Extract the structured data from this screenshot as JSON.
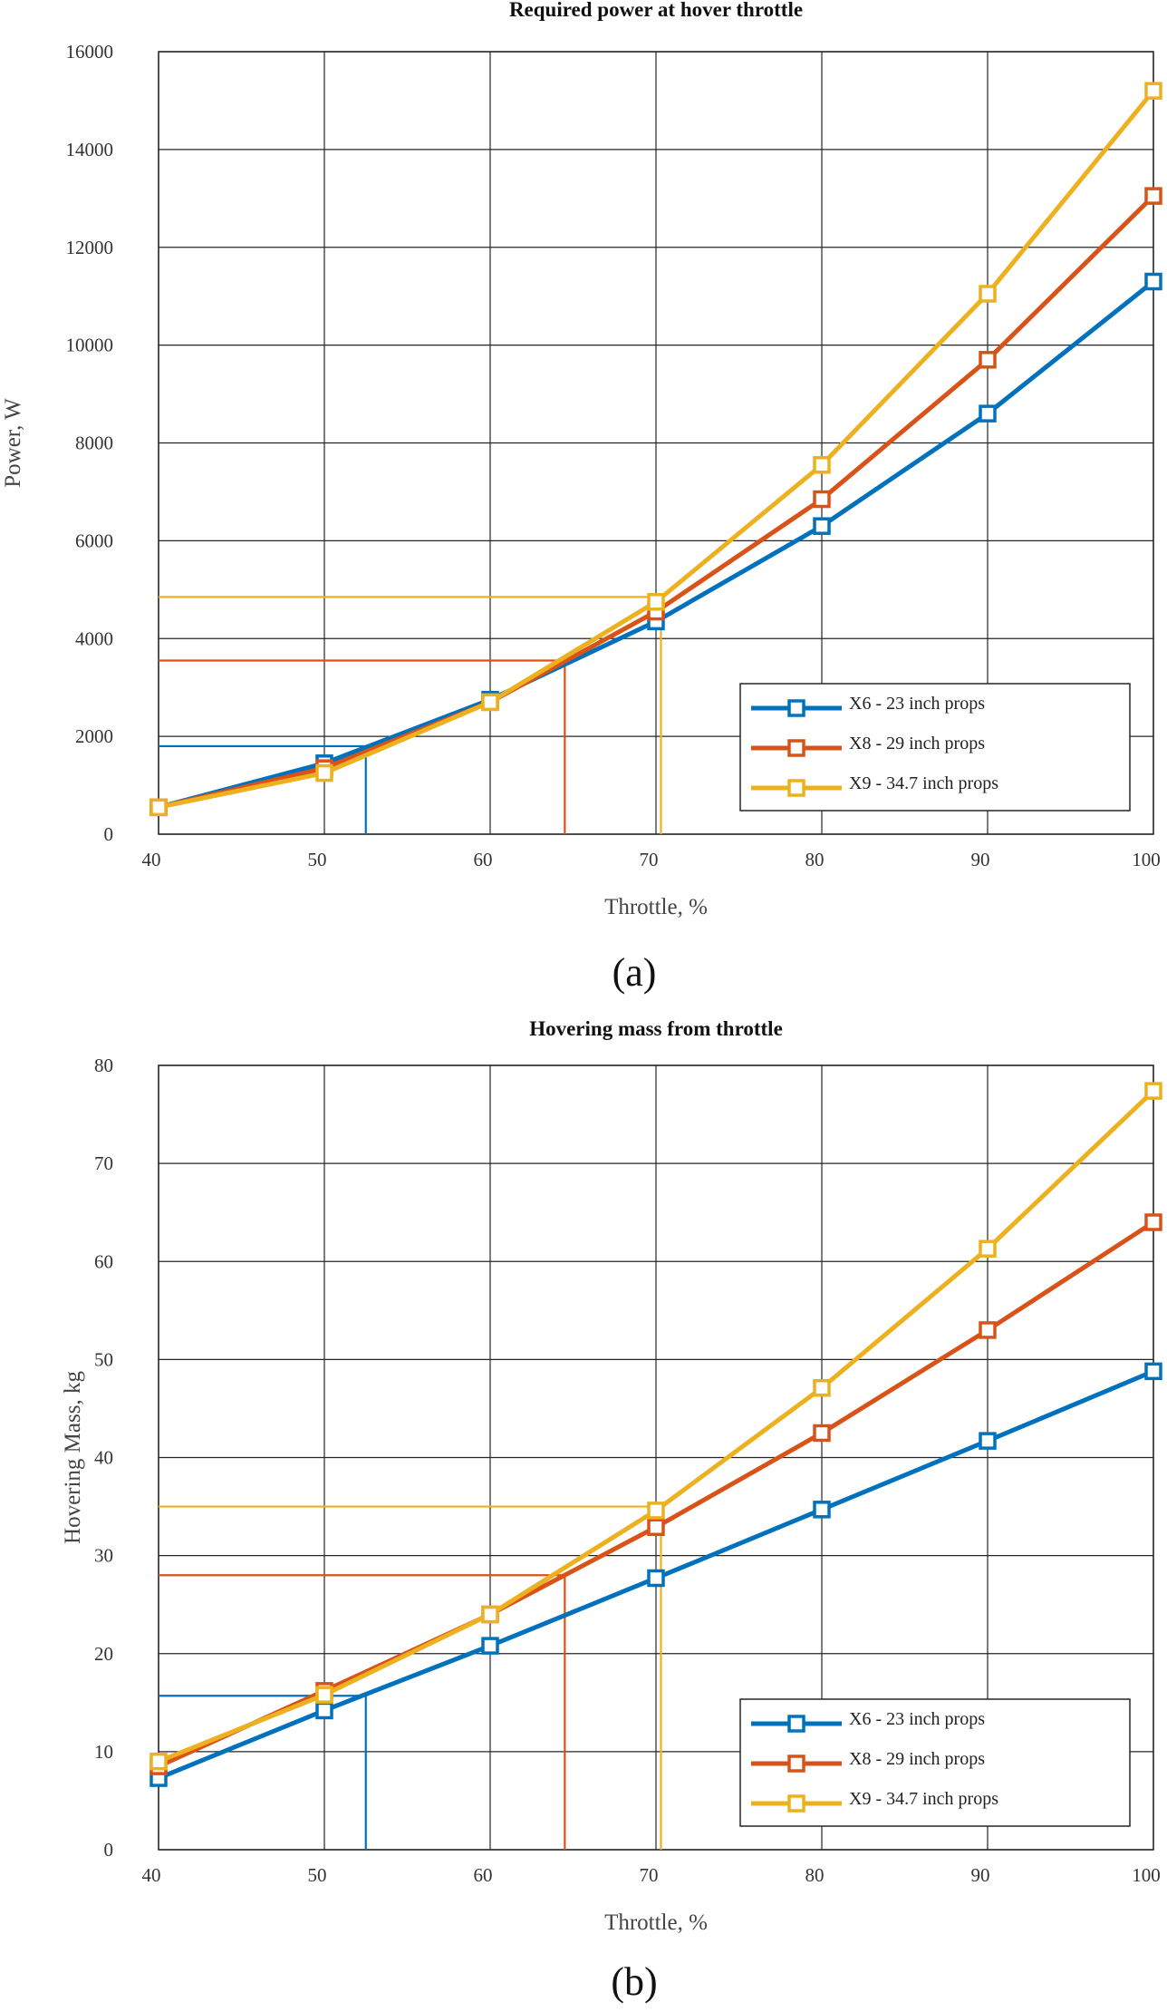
{
  "chart_data": [
    {
      "type": "line",
      "title": "Required power at hover throttle",
      "xlabel": "Throttle, %",
      "ylabel": "Power, W",
      "panel_label": "(a)",
      "xlim": [
        40,
        100
      ],
      "ylim": [
        0,
        16000
      ],
      "xticks": [
        40,
        50,
        60,
        70,
        80,
        90,
        100
      ],
      "yticks": [
        0,
        2000,
        4000,
        6000,
        8000,
        10000,
        12000,
        14000,
        16000
      ],
      "grid": true,
      "legend_position": "bottom-right",
      "x": [
        40,
        50,
        60,
        70,
        80,
        90,
        100
      ],
      "series": [
        {
          "name": "X6 - 23 inch props",
          "color": "#0072BD",
          "values": [
            550,
            1450,
            2750,
            4350,
            6300,
            8600,
            11300
          ]
        },
        {
          "name": "X8 - 29 inch props",
          "color": "#D95319",
          "values": [
            550,
            1350,
            2700,
            4550,
            6850,
            9700,
            13050
          ]
        },
        {
          "name": "X9 - 34.7 inch props",
          "color": "#EDB120",
          "values": [
            550,
            1250,
            2700,
            4750,
            7550,
            11050,
            15200
          ]
        }
      ],
      "reference_lines": [
        {
          "color": "#0072BD",
          "x": 52.5,
          "y": 1800
        },
        {
          "color": "#D95319",
          "x": 64.5,
          "y": 3550
        },
        {
          "color": "#EDB120",
          "x": 70.3,
          "y": 4850
        }
      ]
    },
    {
      "type": "line",
      "title": "Hovering mass from throttle",
      "xlabel": "Throttle, %",
      "ylabel": "Hovering Mass, kg",
      "panel_label": "(b)",
      "xlim": [
        40,
        100
      ],
      "ylim": [
        0,
        80
      ],
      "xticks": [
        40,
        50,
        60,
        70,
        80,
        90,
        100
      ],
      "yticks": [
        0,
        10,
        20,
        30,
        40,
        50,
        60,
        70,
        80
      ],
      "grid": true,
      "legend_position": "bottom-right",
      "x": [
        40,
        50,
        60,
        70,
        80,
        90,
        100
      ],
      "series": [
        {
          "name": "X6 - 23 inch props",
          "color": "#0072BD",
          "values": [
            7.3,
            14.2,
            20.8,
            27.7,
            34.7,
            41.7,
            48.8
          ]
        },
        {
          "name": "X8 - 29 inch props",
          "color": "#D95319",
          "values": [
            8.5,
            16.2,
            24.0,
            32.9,
            42.5,
            53.0,
            64.0
          ]
        },
        {
          "name": "X9 - 34.7 inch props",
          "color": "#EDB120",
          "values": [
            9.0,
            15.8,
            24.0,
            34.6,
            47.1,
            61.3,
            77.4
          ]
        }
      ],
      "reference_lines": [
        {
          "color": "#0072BD",
          "x": 52.5,
          "y": 15.7
        },
        {
          "color": "#D95319",
          "x": 64.5,
          "y": 28.0
        },
        {
          "color": "#EDB120",
          "x": 70.3,
          "y": 35.0
        }
      ]
    }
  ]
}
